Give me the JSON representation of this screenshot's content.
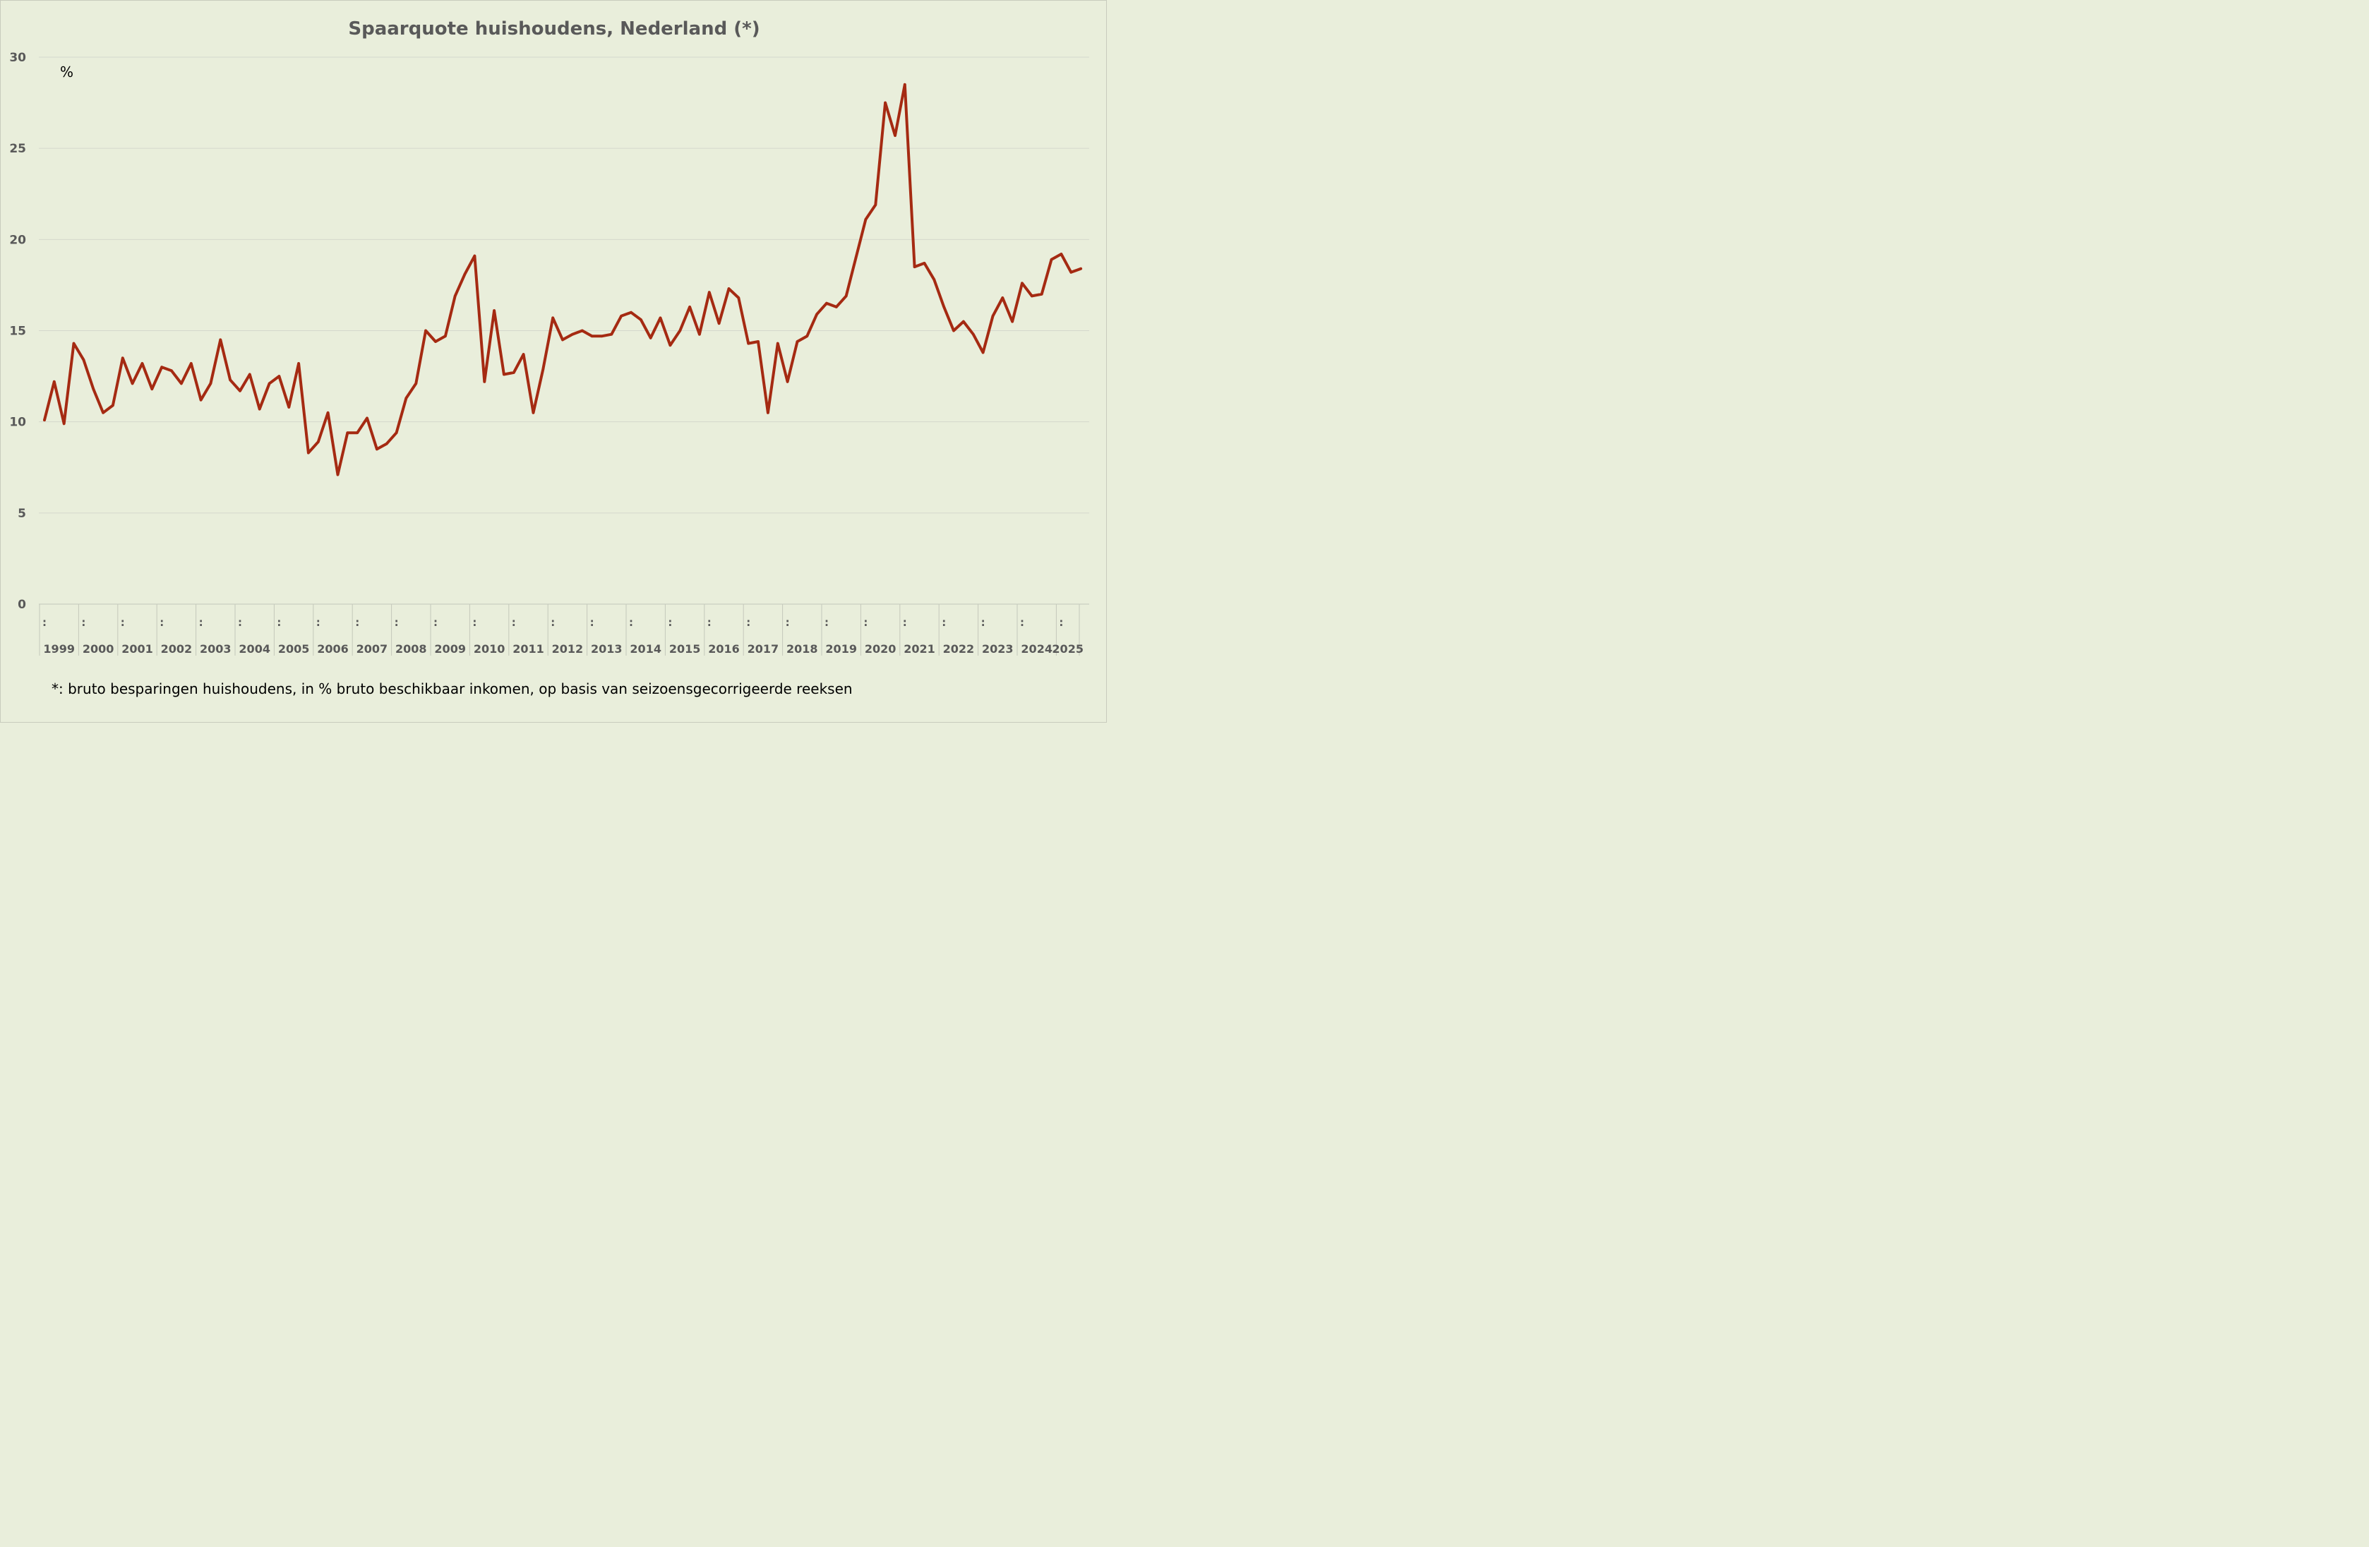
{
  "chart_data": {
    "type": "line",
    "title": "Spaarquote huishoudens, Nederland (*)",
    "unit_label": "%",
    "footnote": "*: bruto besparingen huishoudens, in % bruto beschikbaar inkomen, op basis van seizoensgecorrigeerde reeksen",
    "ylim": [
      0,
      30
    ],
    "yticks": [
      0,
      5,
      10,
      15,
      20,
      25,
      30
    ],
    "grid": true,
    "legend": "none",
    "colors": {
      "line": "#a52a12",
      "grid": "#d4d8cc",
      "text": "#595959",
      "background": "#e9eedb"
    },
    "period_marker": ":",
    "year_labels": [
      "1999",
      "2000",
      "2001",
      "2002",
      "2003",
      "2004",
      "2005",
      "2006",
      "2007",
      "2008",
      "2009",
      "2010",
      "2011",
      "2012",
      "2013",
      "2014",
      "2015",
      "2016",
      "2017",
      "2018",
      "2019",
      "2020",
      "2021",
      "2022",
      "2023",
      "2024",
      "2025"
    ],
    "series": [
      {
        "quarters_per_year": 4,
        "start": "1999-Q1",
        "values": [
          10.1,
          12.2,
          9.9,
          14.3,
          13.4,
          11.8,
          10.5,
          10.9,
          13.5,
          12.1,
          13.2,
          11.8,
          13.0,
          12.8,
          12.1,
          13.2,
          11.2,
          12.1,
          14.5,
          12.3,
          11.7,
          12.6,
          10.7,
          12.1,
          12.5,
          10.8,
          13.2,
          8.3,
          8.9,
          10.5,
          7.1,
          9.4,
          9.4,
          10.2,
          8.5,
          8.8,
          9.4,
          11.3,
          12.1,
          15.0,
          14.4,
          14.7,
          16.9,
          18.1,
          19.1,
          12.2,
          16.1,
          12.6,
          12.7,
          13.7,
          10.5,
          12.9,
          15.7,
          14.5,
          14.8,
          15.0,
          14.7,
          14.7,
          14.8,
          15.8,
          16.0,
          15.6,
          14.6,
          15.7,
          14.2,
          15.0,
          16.3,
          14.8,
          17.1,
          15.4,
          17.3,
          16.8,
          14.3,
          14.4,
          10.5,
          14.3,
          12.2,
          14.4,
          14.7,
          15.9,
          16.5,
          16.3,
          16.9,
          19.0,
          21.1,
          21.9,
          27.5,
          25.7,
          28.5,
          18.5,
          18.7,
          17.8,
          16.3,
          15.0,
          15.5,
          14.8,
          13.8,
          15.8,
          16.8,
          15.5,
          17.6,
          16.9,
          17.0,
          18.9,
          19.2,
          18.2,
          18.4
        ]
      }
    ]
  }
}
